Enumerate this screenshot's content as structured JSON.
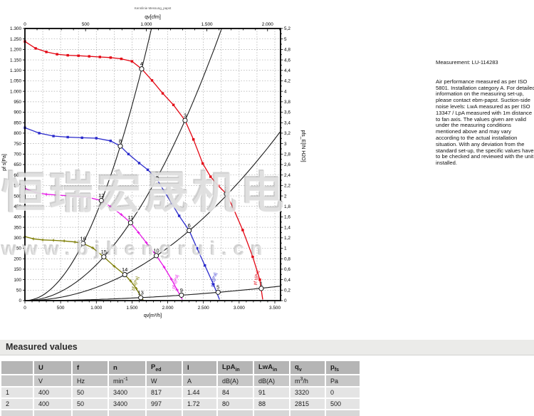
{
  "watermark": {
    "line1": "恒瑞宏晟机电",
    "line2": "www.bjhengrui.cn"
  },
  "measurement_note": {
    "title": "Measurement: LU-114283",
    "body": "Air performance measured as per ISO 5801. Installation category A. For detailed information on the measuring set-up, please contact ebm-papst. Suction-side noise levels: LwA measured as per ISO 13347 / LpA measured with 1m distance to fan axis. The values given are valid under the measuring conditions mentioned above and may vary according to the actual installation situation. With any deviation from the standard set-up, the specific values have to be checked and reviewed with the unit installed."
  },
  "chart_data": {
    "type": "line",
    "title": "Kennlinie Messung_papst",
    "grid": true,
    "top_axis": {
      "label": "qv[cfm]",
      "tick_values": [
        0,
        500,
        1000,
        1500,
        2000
      ],
      "tick_labels": [
        "0",
        "500",
        "1.000",
        "1.500",
        "2.000"
      ],
      "minor_step": 100,
      "max": 2100
    },
    "bottom_axis": {
      "label": "qv[m³/h]",
      "tick_values": [
        0,
        500,
        1000,
        1500,
        2000,
        2500,
        3000,
        3500
      ],
      "tick_labels": [
        "0",
        "500",
        "1.000",
        "1.500",
        "2.000",
        "2.500",
        "3.000",
        "3.500"
      ],
      "minor_step": 100,
      "xlim": [
        0,
        3580
      ]
    },
    "left_axis": {
      "label": "pf s[Pa]",
      "min": 0,
      "max": 1300,
      "step": 50
    },
    "right_axis": {
      "label": "pfs_E[IN H2O]",
      "min": 0,
      "max": 5.2,
      "step": 0.2,
      "minor_step": 0.1
    },
    "grid_step_x": 250,
    "grid_step_y": 50,
    "series": [
      {
        "name": "curve-red",
        "color": "#e30613",
        "marker": "square",
        "end_label": "pf s[Pa]",
        "end_label_at": [
          3258,
          108
        ],
        "end_label_angle": -78,
        "points": [
          [
            0,
            1238
          ],
          [
            150,
            1205
          ],
          [
            300,
            1188
          ],
          [
            450,
            1177
          ],
          [
            600,
            1172
          ],
          [
            750,
            1170
          ],
          [
            900,
            1167
          ],
          [
            1050,
            1164
          ],
          [
            1200,
            1161
          ],
          [
            1350,
            1155
          ],
          [
            1500,
            1143
          ],
          [
            1635,
            1107
          ],
          [
            1780,
            1052
          ],
          [
            1930,
            990
          ],
          [
            2080,
            935
          ],
          [
            2243,
            861
          ],
          [
            2360,
            770
          ],
          [
            2490,
            655
          ],
          [
            2600,
            592
          ],
          [
            2710,
            548
          ],
          [
            2822,
            510
          ],
          [
            2920,
            440
          ],
          [
            3050,
            337
          ],
          [
            3190,
            210
          ],
          [
            3290,
            100
          ],
          [
            3330,
            5
          ]
        ]
      },
      {
        "name": "curve-blue",
        "color": "#2a2acc",
        "marker": "square",
        "end_label": "pf s[Pa]",
        "end_label_at": [
          2662,
          98
        ],
        "end_label_angle": -76,
        "points": [
          [
            0,
            826
          ],
          [
            200,
            800
          ],
          [
            400,
            786
          ],
          [
            600,
            781
          ],
          [
            800,
            778
          ],
          [
            1000,
            776
          ],
          [
            1200,
            763
          ],
          [
            1336,
            738
          ],
          [
            1450,
            700
          ],
          [
            1600,
            657
          ],
          [
            1720,
            625
          ],
          [
            1845,
            582
          ],
          [
            1950,
            522
          ],
          [
            2060,
            462
          ],
          [
            2160,
            405
          ],
          [
            2300,
            335
          ],
          [
            2410,
            250
          ],
          [
            2520,
            168
          ],
          [
            2640,
            78
          ],
          [
            2725,
            5
          ]
        ]
      },
      {
        "name": "curve-magenta",
        "color": "#e615e6",
        "marker": "plus",
        "end_label": "pf s[Pa]",
        "end_label_at": [
          2122,
          88
        ],
        "end_label_angle": -74,
        "points": [
          [
            0,
            536
          ],
          [
            150,
            516
          ],
          [
            300,
            508
          ],
          [
            450,
            504
          ],
          [
            600,
            501
          ],
          [
            750,
            498
          ],
          [
            900,
            492
          ],
          [
            1070,
            478
          ],
          [
            1200,
            449
          ],
          [
            1350,
            411
          ],
          [
            1480,
            372
          ],
          [
            1590,
            325
          ],
          [
            1700,
            277
          ],
          [
            1840,
            215
          ],
          [
            1950,
            160
          ],
          [
            2050,
            103
          ],
          [
            2130,
            52
          ],
          [
            2205,
            5
          ]
        ]
      },
      {
        "name": "curve-olive",
        "color": "#7c7c00",
        "marker": "plus",
        "end_label": "pf s[Pa]",
        "end_label_at": [
          1562,
          80
        ],
        "end_label_angle": -70,
        "points": [
          [
            0,
            306
          ],
          [
            120,
            295
          ],
          [
            250,
            290
          ],
          [
            400,
            288
          ],
          [
            550,
            285
          ],
          [
            700,
            280
          ],
          [
            815,
            273
          ],
          [
            950,
            252
          ],
          [
            1105,
            209
          ],
          [
            1250,
            164
          ],
          [
            1398,
            124
          ],
          [
            1480,
            94
          ],
          [
            1560,
            58
          ],
          [
            1625,
            18
          ],
          [
            1658,
            2
          ]
        ]
      }
    ],
    "system_lines": [
      {
        "k": 0.000414,
        "qmax": 1772
      },
      {
        "k": 0.0001712,
        "qmax": 2756
      },
      {
        "k": 6.31e-05,
        "qmax": 3580
      },
      {
        "k": 5.4e-06,
        "qmax": 3580
      }
    ],
    "operating_points": [
      {
        "n": "1",
        "q": 3310,
        "p": 58
      },
      {
        "n": "2",
        "q": 2822,
        "p": 510
      },
      {
        "n": "3",
        "q": 2243,
        "p": 861
      },
      {
        "n": "4",
        "q": 1635,
        "p": 1107
      },
      {
        "n": "5",
        "q": 2705,
        "p": 40
      },
      {
        "n": "6",
        "q": 2300,
        "p": 335
      },
      {
        "n": "7",
        "q": 1845,
        "p": 582
      },
      {
        "n": "8",
        "q": 1336,
        "p": 738
      },
      {
        "n": "9",
        "q": 2192,
        "p": 26
      },
      {
        "n": "10",
        "q": 1840,
        "p": 215
      },
      {
        "n": "11",
        "q": 1480,
        "p": 372
      },
      {
        "n": "12",
        "q": 1070,
        "p": 478
      },
      {
        "n": "13",
        "q": 1622,
        "p": 14
      },
      {
        "n": "14",
        "q": 1398,
        "p": 124
      },
      {
        "n": "15",
        "q": 1105,
        "p": 209
      },
      {
        "n": "16",
        "q": 815,
        "p": 273
      }
    ]
  },
  "measured_values": {
    "section_title": "Measured values",
    "columns": [
      {
        "base": "U"
      },
      {
        "base": "f"
      },
      {
        "base": "n"
      },
      {
        "base": "P",
        "sub": "ed"
      },
      {
        "base": "I"
      },
      {
        "base": "LpA",
        "sub": "in"
      },
      {
        "base": "LwA",
        "sub": "in"
      },
      {
        "base": "q",
        "sub": "v"
      },
      {
        "base": "p",
        "sub": "fs"
      }
    ],
    "units": [
      {
        "base": "V"
      },
      {
        "base": "Hz"
      },
      {
        "base": "min",
        "sup": "-1"
      },
      {
        "base": "W"
      },
      {
        "base": "A"
      },
      {
        "base": "dB(A)"
      },
      {
        "base": "dB(A)"
      },
      {
        "base": "m",
        "sup": "3",
        "tail": "/h"
      },
      {
        "base": "Pa"
      }
    ],
    "rows": [
      {
        "idx": "1",
        "cells": [
          "400",
          "50",
          "3400",
          "817",
          "1.44",
          "84",
          "91",
          "3320",
          "0"
        ]
      },
      {
        "idx": "2",
        "cells": [
          "400",
          "50",
          "3400",
          "997",
          "1.72",
          "80",
          "88",
          "2815",
          "500"
        ]
      }
    ]
  }
}
